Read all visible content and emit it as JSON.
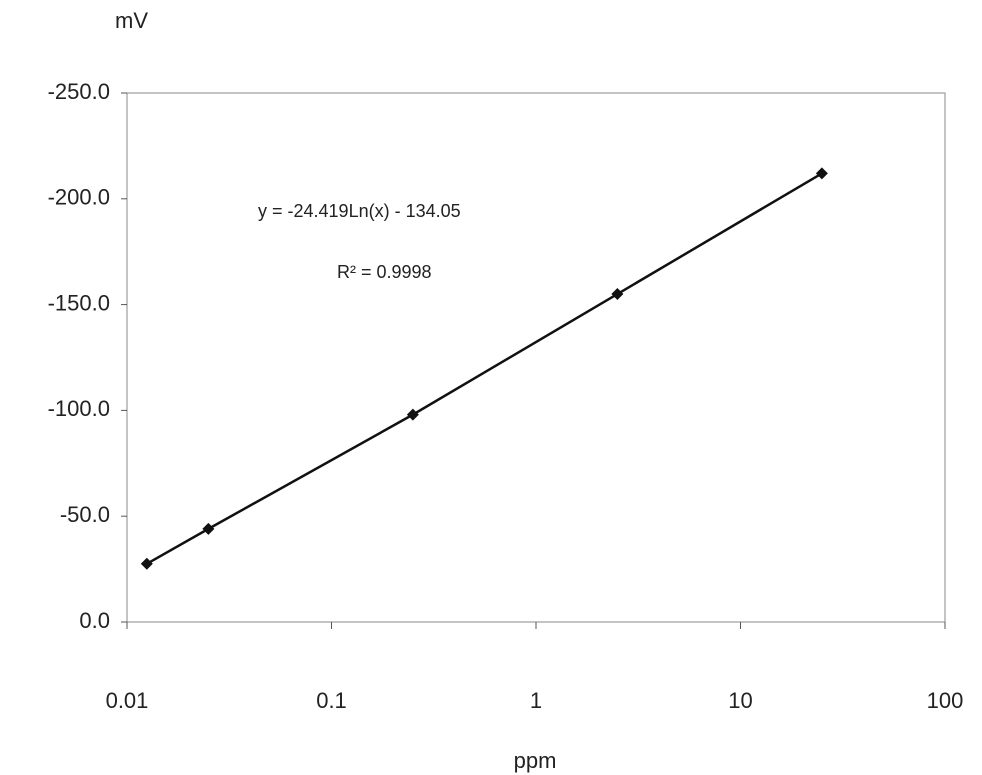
{
  "chart_data": {
    "type": "scatter",
    "y_label": "mV",
    "x_label": "ppm",
    "annotations": [
      "y = -24.419Ln(x) - 134.05",
      "R² = 0.9998"
    ],
    "x": [
      0.0125,
      0.025,
      0.25,
      2.5,
      25
    ],
    "series": [
      {
        "color": "#111111",
        "values": [
          -27.5,
          -44,
          -98,
          -155,
          -212
        ]
      }
    ],
    "xlim": [
      0.01,
      100
    ],
    "xticks": [
      0.01,
      0.1,
      1,
      10,
      100
    ],
    "x_log": true,
    "ylim": [
      0,
      -250
    ],
    "yticks": [
      {
        "value": 0,
        "label": "0.0"
      },
      {
        "value": -50,
        "label": "-50.0"
      },
      {
        "value": -100,
        "label": "-100.0"
      },
      {
        "value": -150,
        "label": "-150.0"
      },
      {
        "value": -200,
        "label": "-200.0"
      },
      {
        "value": -250,
        "label": "-250.0"
      }
    ],
    "grid": false
  }
}
